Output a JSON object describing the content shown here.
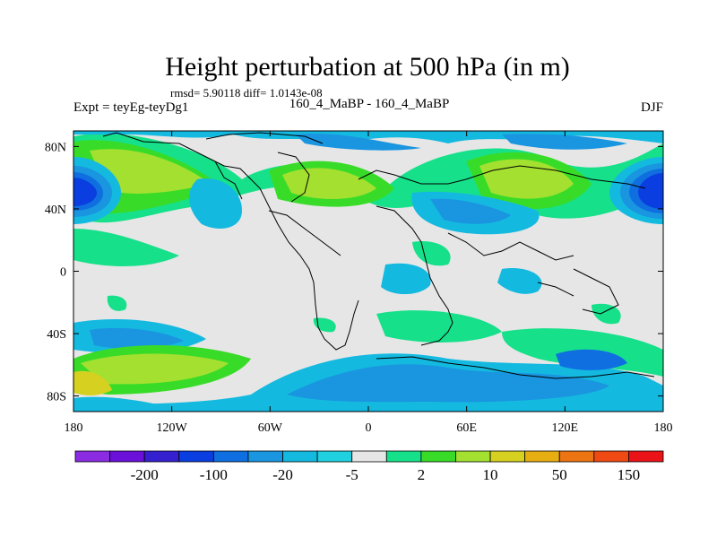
{
  "title": "Height perturbation at 500 hPa (in m)",
  "stats_text": "rmsd= 5.90118 diff= 1.0143e-08",
  "left_label": "Expt = teyEg-teyDg1",
  "center_label": "160_4_MaBP - 160_4_MaBP",
  "right_label": "DJF",
  "axes": {
    "lon_range": [
      -180,
      180
    ],
    "lat_range": [
      -90,
      90
    ],
    "lon_ticks": [
      {
        "value": -180,
        "label": "180"
      },
      {
        "value": -120,
        "label": "120W"
      },
      {
        "value": -60,
        "label": "60W"
      },
      {
        "value": 0,
        "label": "0"
      },
      {
        "value": 60,
        "label": "60E"
      },
      {
        "value": 120,
        "label": "120E"
      },
      {
        "value": 180,
        "label": "180"
      }
    ],
    "lat_ticks": [
      {
        "value": 80,
        "label": "80N"
      },
      {
        "value": 40,
        "label": "40N"
      },
      {
        "value": 0,
        "label": "0"
      },
      {
        "value": -40,
        "label": "40S"
      },
      {
        "value": -80,
        "label": "80S"
      }
    ]
  },
  "colorbar": {
    "colors": [
      "#8b2be2",
      "#6a10d8",
      "#3520d0",
      "#0a3ee0",
      "#0f6fe0",
      "#1a95e0",
      "#14b9e0",
      "#1ed0e0",
      "#e6e6e6",
      "#16e08a",
      "#38dc28",
      "#a4e030",
      "#d6d020",
      "#e6ae10",
      "#ec7412",
      "#f04a14",
      "#ea1418"
    ],
    "labels": [
      {
        "after_index": 1,
        "text": "-200"
      },
      {
        "after_index": 3,
        "text": "-100"
      },
      {
        "after_index": 5,
        "text": "-20"
      },
      {
        "after_index": 7,
        "text": "-5"
      },
      {
        "after_index": 9,
        "text": "2"
      },
      {
        "after_index": 11,
        "text": "10"
      },
      {
        "after_index": 13,
        "text": "50"
      },
      {
        "after_index": 15,
        "text": "150"
      }
    ]
  },
  "anomaly_regions": [
    {
      "id": "np-pos-center",
      "level": "10",
      "color": "#38dc28",
      "lon": [
        -175,
        -130
      ],
      "lat": [
        40,
        80
      ]
    },
    {
      "id": "np-inner",
      "level": "20",
      "color": "#a4e030",
      "lon": [
        -170,
        -140
      ],
      "lat": [
        50,
        75
      ]
    },
    {
      "id": "atl-pos",
      "level": "20",
      "color": "#a4e030",
      "lon": [
        -60,
        15
      ],
      "lat": [
        30,
        70
      ]
    },
    {
      "id": "eurasia-pos",
      "level": "20",
      "color": "#a4e030",
      "lon": [
        60,
        110
      ],
      "lat": [
        35,
        70
      ]
    },
    {
      "id": "nw-pac-neg",
      "level": "-50",
      "color": "#0a3ee0",
      "lon": [
        -180,
        -160
      ],
      "lat": [
        30,
        55
      ]
    },
    {
      "id": "ne-pac-neg",
      "level": "-50",
      "color": "#0a3ee0",
      "lon": [
        155,
        180
      ],
      "lat": [
        35,
        60
      ]
    },
    {
      "id": "so-pos",
      "level": "10",
      "color": "#a4e030",
      "lon": [
        -180,
        -100
      ],
      "lat": [
        -80,
        -50
      ]
    },
    {
      "id": "so-neg",
      "level": "-10",
      "color": "#1a95e0",
      "lon": [
        -30,
        130
      ],
      "lat": [
        -90,
        -55
      ]
    }
  ]
}
